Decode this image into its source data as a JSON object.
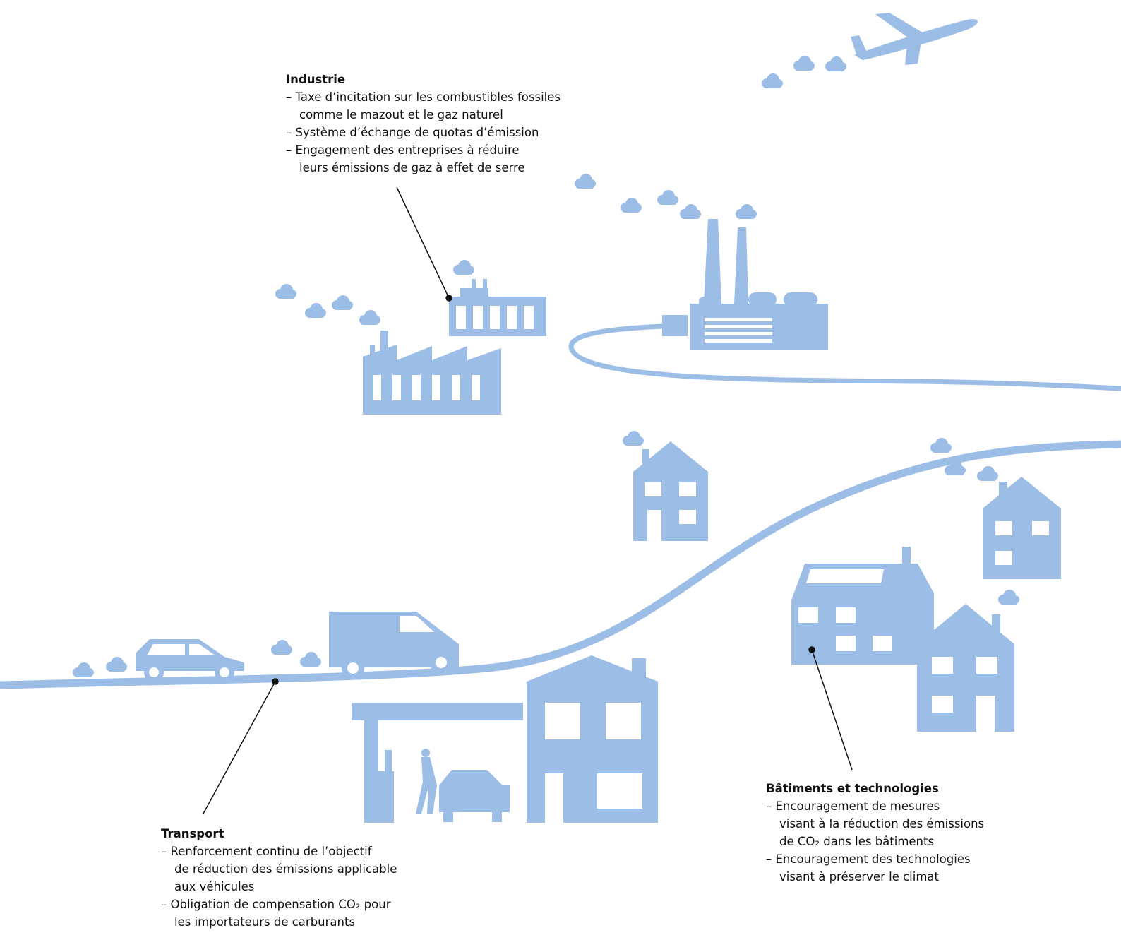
{
  "sections": {
    "industry": {
      "title": "Industrie",
      "items": [
        [
          "– Taxe d’incitation sur les combustibles fossiles",
          "comme le mazout et le gaz naturel"
        ],
        [
          "– Système d’échange de quotas d’émission"
        ],
        [
          "– Engagement des entreprises à réduire",
          "leurs émissions de gaz à effet de serre"
        ]
      ]
    },
    "transport": {
      "title": "Transport",
      "items": [
        [
          "– Renforcement continu de l’objectif",
          "de réduction des émissions applicable",
          "aux véhicules"
        ],
        [
          "– Obligation de compensation CO₂ pour",
          "les importateurs de carburants"
        ]
      ]
    },
    "buildings": {
      "title": "Bâtiments et technologies",
      "items": [
        [
          "– Encouragement de mesures",
          "visant à la réduction des émissions",
          "de CO₂ dans les bâtiments"
        ],
        [
          "– Encouragement des technologies",
          "visant à préserver le climat"
        ]
      ]
    }
  }
}
